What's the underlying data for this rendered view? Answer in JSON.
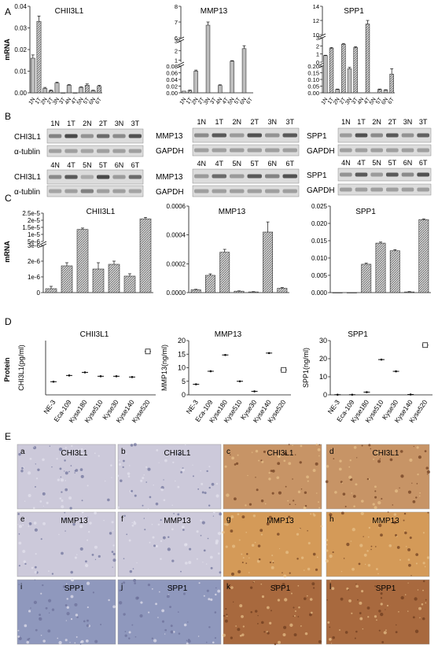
{
  "panel_letters": {
    "a": "A",
    "b": "B",
    "c": "C",
    "d": "D",
    "e": "E"
  },
  "colors": {
    "bar": "#bdbdbd",
    "bar_hatch": "#6e6e6e",
    "axis": "#111111",
    "western_bg": "#dcdcdc",
    "band": "#3a3a3a",
    "ihc_normal": "#c7c8dd",
    "ihc_tumor": "#c79466"
  },
  "chart_data": [
    {
      "panel": "A",
      "type": "bar",
      "title": "CHII3L1",
      "ylabel": "mRNA",
      "categories": [
        "1N",
        "1T",
        "2N",
        "2T",
        "3N",
        "3T",
        "4N",
        "4T",
        "5N",
        "5T",
        "6N",
        "6T"
      ],
      "values": [
        0.016,
        0.033,
        0.002,
        0.001,
        0.0045,
        0.0,
        0.0035,
        0.0,
        0.0025,
        0.0035,
        0.001,
        0.003
      ],
      "errors": [
        0.0015,
        0.0025,
        0.0005,
        0.0003,
        0.0004,
        0,
        0.0003,
        0,
        0.0003,
        0.0006,
        0.0002,
        0.0005
      ],
      "yticks": [
        "0.00",
        "0.01",
        "0.02",
        "0.03",
        "0.04"
      ],
      "ylim": [
        0,
        0.04
      ]
    },
    {
      "panel": "A",
      "type": "bar",
      "title": "MMP13",
      "categories": [
        "1N",
        "1T",
        "2N",
        "2T",
        "3N",
        "3T",
        "4N",
        "4T",
        "5N",
        "5T",
        "6N",
        "6T"
      ],
      "values": [
        0.005,
        0.007,
        0.065,
        0.0,
        6.8,
        0.0,
        0.022,
        0.0,
        0.9,
        0.0,
        2.2,
        0.0
      ],
      "errors": [
        0,
        0.001,
        0.003,
        0,
        0.2,
        0,
        0.002,
        0,
        0.05,
        0,
        0.3,
        0
      ],
      "broken_axis": true,
      "segments": [
        {
          "ticks": [
            "0.00",
            "0.02",
            "0.04",
            "0.06",
            "0.08"
          ],
          "range": [
            0,
            0.08
          ]
        },
        {
          "ticks": [
            "1",
            "2",
            "3"
          ],
          "range": [
            0.8,
            3
          ]
        },
        {
          "ticks": [
            "6",
            "7",
            "8"
          ],
          "range": [
            6,
            8
          ]
        }
      ]
    },
    {
      "panel": "A",
      "type": "bar",
      "title": "SPP1",
      "categories": [
        "1N",
        "1T",
        "2N",
        "2T",
        "3N",
        "3T",
        "4N",
        "4T",
        "5N",
        "5T",
        "6N",
        "6T"
      ],
      "values": [
        0.8,
        1.7,
        0.025,
        2.2,
        0.18,
        1.8,
        0.0,
        11.5,
        0.0,
        0.025,
        0.02,
        0.14
      ],
      "errors": [
        0.05,
        0.1,
        0.003,
        0.1,
        0.01,
        0.1,
        0,
        0.5,
        0,
        0.003,
        0.003,
        0.04
      ],
      "broken_axis": true,
      "segments": [
        {
          "ticks": [
            "0.00",
            "0.05",
            "0.10",
            "0.15",
            "0.20"
          ],
          "range": [
            0,
            0.2
          ]
        },
        {
          "ticks": [
            "0",
            "1",
            "2",
            "3"
          ],
          "range": [
            0,
            3
          ]
        },
        {
          "ticks": [
            "10",
            "12",
            "14"
          ],
          "range": [
            10,
            14
          ]
        }
      ]
    },
    {
      "panel": "C",
      "type": "bar",
      "title": "CHII3L1",
      "ylabel": "mRNA",
      "values": [
        2.5e-07,
        1.7e-06,
        1.35e-05,
        1.5e-06,
        1.8e-06,
        1.05e-06,
        2.1e-05
      ],
      "errors": [
        1.5e-07,
        2e-07,
        1e-06,
        4e-07,
        2e-07,
        1.5e-07,
        1e-06
      ],
      "broken_axis": true,
      "segments": [
        {
          "ticks": [
            "0",
            "1e-6",
            "2e-6",
            "3e-6"
          ],
          "range": [
            0,
            3e-06
          ]
        },
        {
          "ticks": [
            "5e-6",
            "1e-5",
            "1.5e-5",
            "2e-5",
            "2.5e-5"
          ],
          "range": [
            5e-06,
            2.5e-05
          ]
        }
      ]
    },
    {
      "panel": "C",
      "type": "bar",
      "title": "MMP13",
      "values": [
        2e-05,
        0.00012,
        0.00028,
        1e-05,
        5e-06,
        0.00042,
        3e-05
      ],
      "errors": [
        3e-06,
        1e-05,
        2e-05,
        2e-06,
        2e-06,
        7e-05,
        5e-06
      ],
      "yticks": [
        "0.0000",
        "0.0002",
        "0.0004",
        "0.0006"
      ],
      "ylim": [
        0,
        0.0006
      ]
    },
    {
      "panel": "C",
      "type": "bar",
      "title": "SPP1",
      "values": [
        0,
        0,
        0.0082,
        0.0143,
        0.0121,
        0.0002,
        0.0211
      ],
      "errors": [
        0,
        0,
        0.0003,
        0.0003,
        0.0003,
        0.0001,
        0.0002
      ],
      "yticks": [
        "0.000",
        "0.005",
        "0.010",
        "0.015",
        "0.020",
        "0.025"
      ],
      "ylim": [
        0,
        0.025
      ]
    },
    {
      "panel": "D",
      "type": "scatter",
      "title": "CHII3L1",
      "ylabel": "CHI3L1(pg/ml)",
      "section_label": "Protein",
      "categories": [
        "NE-3",
        "Eca-109",
        "Kyse180",
        "Kyse510",
        "Kyse30",
        "Kyse140",
        "Kyse520"
      ],
      "values": [
        1.7,
        2.5,
        2.9,
        2.4,
        2.4,
        2.3,
        5.6
      ],
      "ylim": [
        0,
        7
      ]
    },
    {
      "panel": "D",
      "type": "scatter",
      "title": "MMP13",
      "ylabel": "MMP13(ng/ml)",
      "categories": [
        "NE-3",
        "Eca-109",
        "Kyse180",
        "Kyse510",
        "Kyse30",
        "Kyse140",
        "Kyse520"
      ],
      "values": [
        3.9,
        8.7,
        14.7,
        5.0,
        1.3,
        15.4,
        9.2
      ],
      "yticks": [
        "0",
        "5",
        "10",
        "15",
        "20"
      ],
      "ylim": [
        0,
        20
      ]
    },
    {
      "panel": "D",
      "type": "scatter",
      "title": "SPP1",
      "ylabel": "SPP1(ng/ml)",
      "categories": [
        "NE-3",
        "Eca-109",
        "Kyse180",
        "Kyse510",
        "Kyse30",
        "Kyse140",
        "Kyse520"
      ],
      "values": [
        0.1,
        0.1,
        1.5,
        19.5,
        13.0,
        0.2,
        27.5
      ],
      "yticks": [
        "0",
        "10",
        "20",
        "30"
      ],
      "ylim": [
        0,
        30
      ]
    }
  ],
  "western": {
    "chi_top_lanes": [
      "1N",
      "1T",
      "2N",
      "2T",
      "3N",
      "3T"
    ],
    "chi_bot_lanes": [
      "4N",
      "4T",
      "5N",
      "5T",
      "6N",
      "6T"
    ],
    "mmp_top_lanes": [
      "1N",
      "1T",
      "2N",
      "2T",
      "3N",
      "3T"
    ],
    "mmp_bot_lanes": [
      "4N",
      "4T",
      "5N",
      "5T",
      "6N",
      "6T"
    ],
    "spp_top_lanes": [
      "1N",
      "1T",
      "2N",
      "2T",
      "3N",
      "3T"
    ],
    "spp_bot_lanes": [
      "4N",
      "4T",
      "5N",
      "5T",
      "6N",
      "6T"
    ],
    "chi_label": "CHI3L1",
    "chi_ctrl": "α-tublin",
    "mmp_label": "MMP13",
    "mmp_ctrl": "GAPDH",
    "spp_label": "SPP1",
    "spp_ctrl": "GAPDH"
  },
  "ihc": [
    {
      "letter": "a",
      "label": "CHI3L1",
      "kind": "normal"
    },
    {
      "letter": "b",
      "label": "CHI3L1",
      "kind": "normal"
    },
    {
      "letter": "c",
      "label": "CHI3L1",
      "kind": "tumor"
    },
    {
      "letter": "d",
      "label": "CHI3L1",
      "kind": "tumor"
    },
    {
      "letter": "e",
      "label": "MMP13",
      "kind": "normal"
    },
    {
      "letter": "f",
      "label": "MMP13",
      "kind": "normal"
    },
    {
      "letter": "g",
      "label": "MMP13",
      "kind": "tumor"
    },
    {
      "letter": "h",
      "label": "MMP13",
      "kind": "tumor"
    },
    {
      "letter": "i",
      "label": "SPP1",
      "kind": "normal"
    },
    {
      "letter": "j",
      "label": "SPP1",
      "kind": "normal"
    },
    {
      "letter": "k",
      "label": "SPP1",
      "kind": "tumor"
    },
    {
      "letter": "l",
      "label": "SPP1",
      "kind": "tumor"
    }
  ]
}
